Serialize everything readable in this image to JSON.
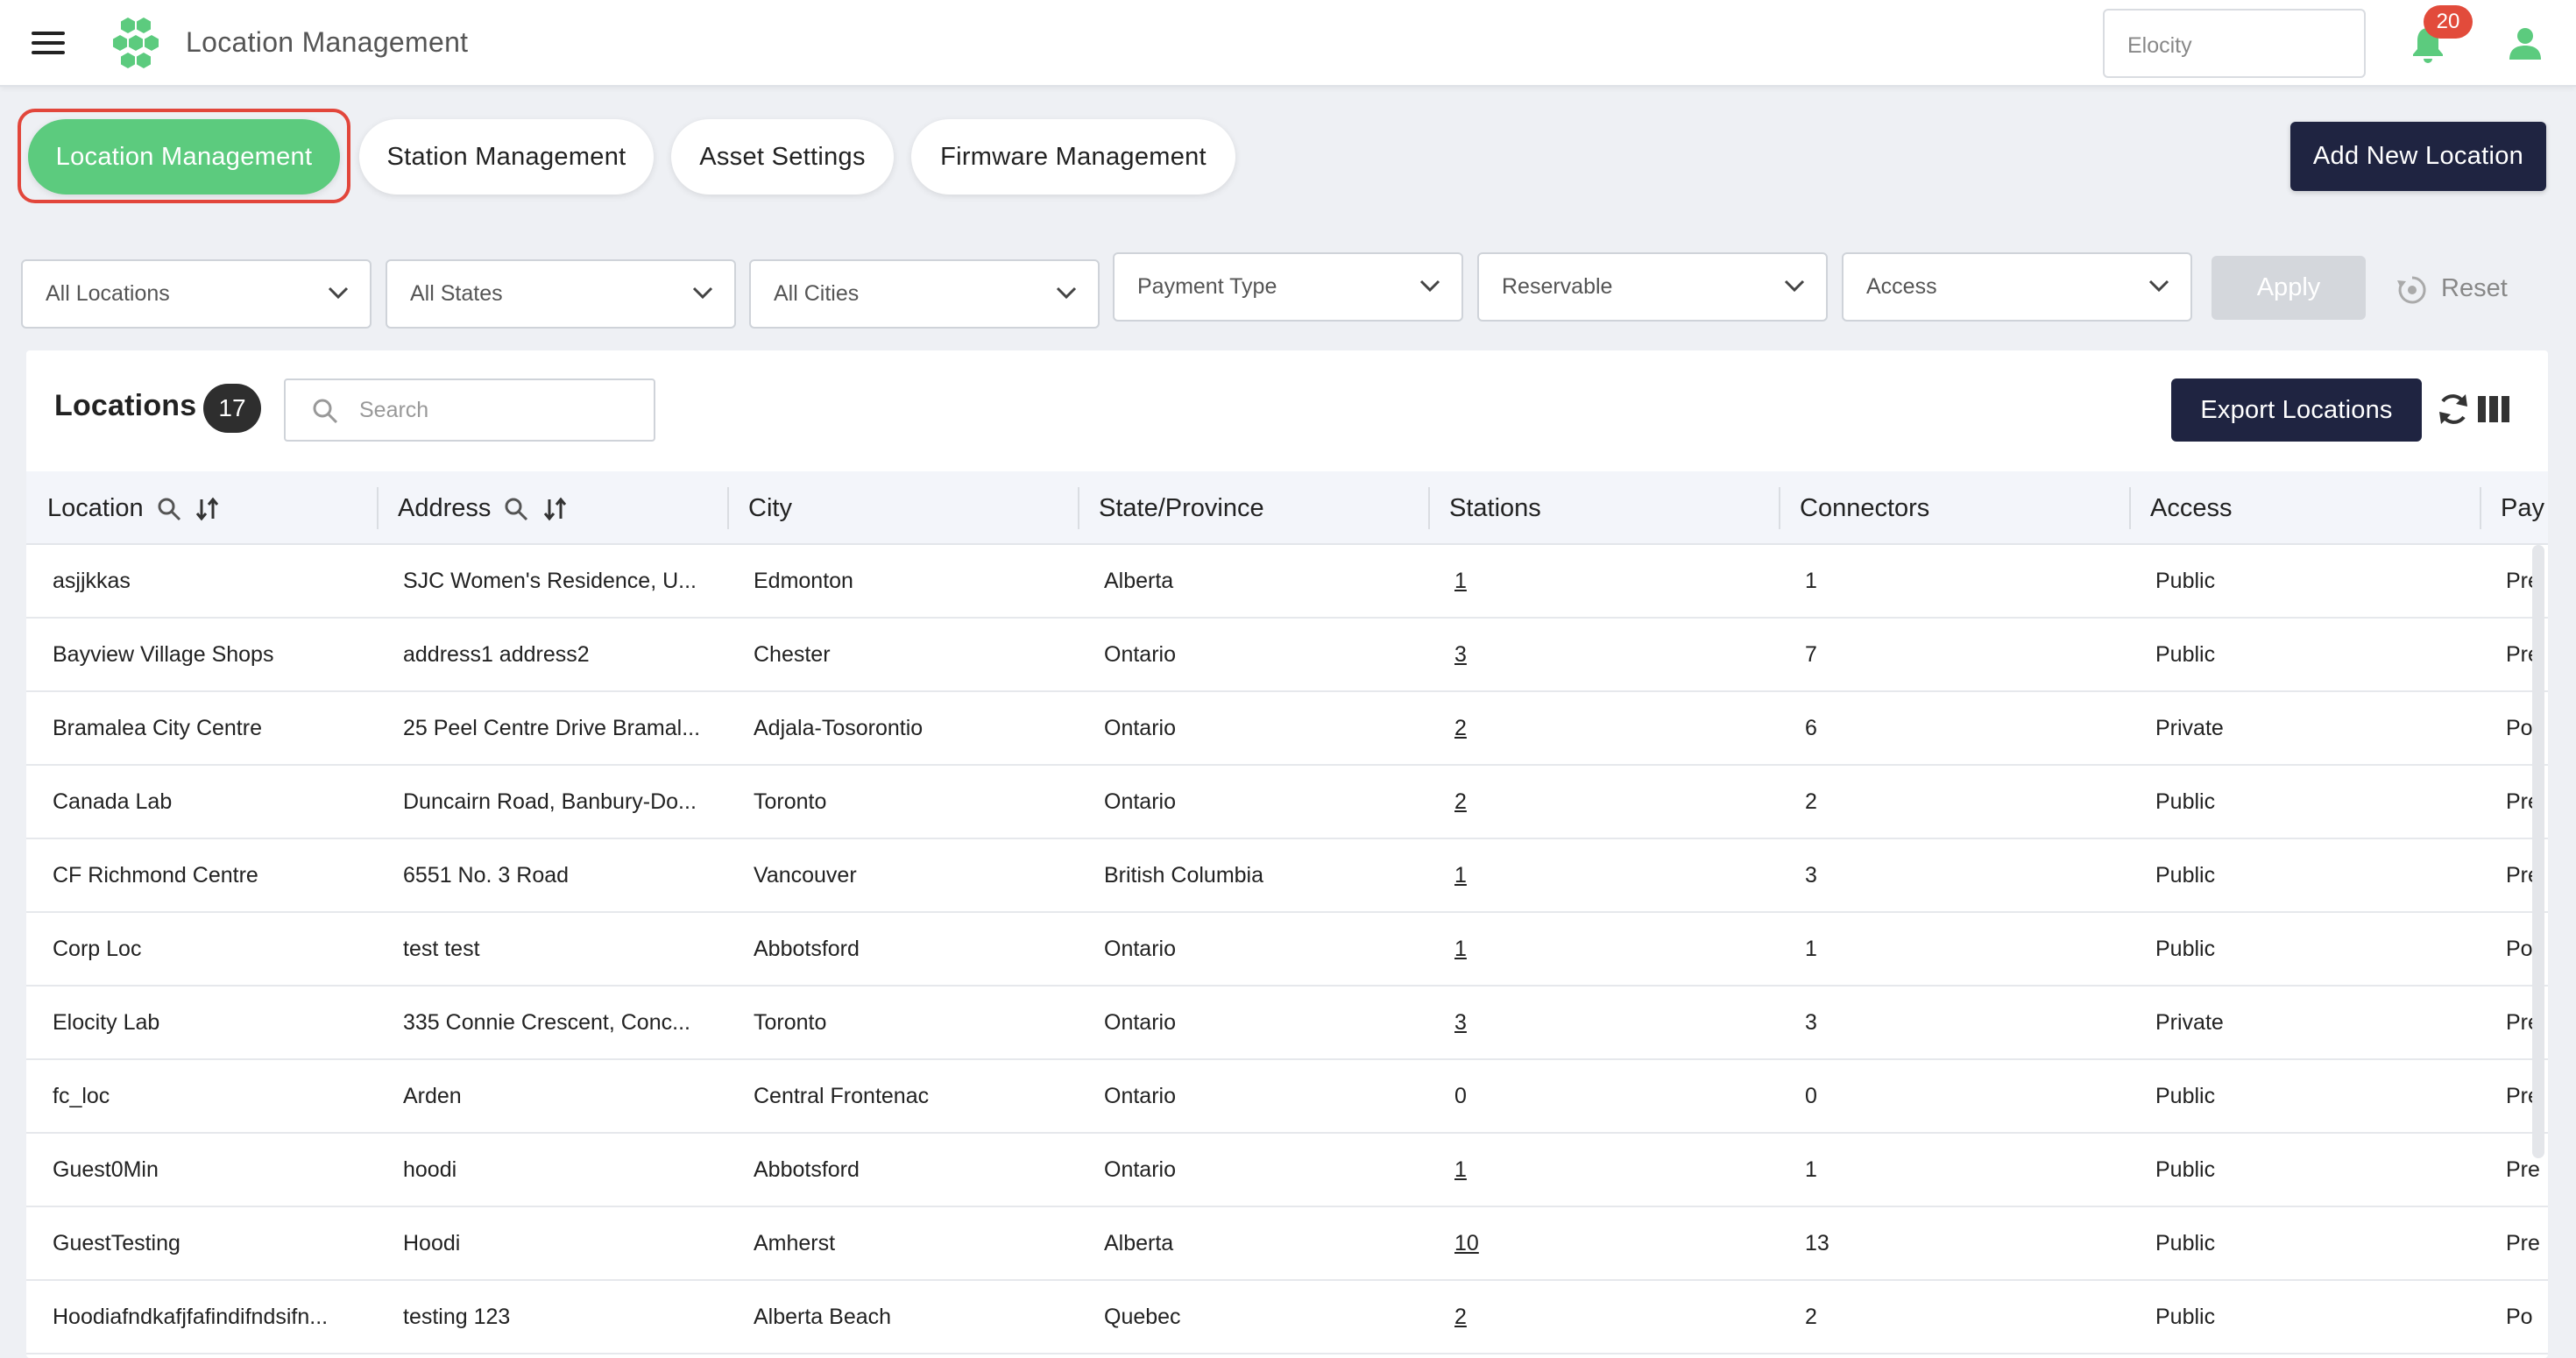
{
  "header": {
    "app_title": "Location Management",
    "org_select_value": "Elocity",
    "notification_count": "20",
    "icons": [
      "hamburger-menu-icon",
      "hexagon-logo-icon",
      "bell-icon",
      "user-icon"
    ]
  },
  "tabs": [
    {
      "label": "Location Management",
      "active": true
    },
    {
      "label": "Station Management",
      "active": false
    },
    {
      "label": "Asset Settings",
      "active": false
    },
    {
      "label": "Firmware Management",
      "active": false
    }
  ],
  "add_button_label": "Add New Location",
  "filters": {
    "locations": "All Locations",
    "states": "All States",
    "cities": "All Cities",
    "payment_type": "Payment Type",
    "reservable": "Reservable",
    "access": "Access",
    "apply_label": "Apply",
    "reset_label": "Reset"
  },
  "table_card": {
    "title": "Locations",
    "count": "17",
    "search_placeholder": "Search",
    "export_label": "Export Locations"
  },
  "columns": [
    "Location",
    "Address",
    "City",
    "State/Province",
    "Stations",
    "Connectors",
    "Access",
    "Pay"
  ],
  "rows": [
    {
      "location": "asjjkkas",
      "address": "SJC Women's Residence, U...",
      "city": "Edmonton",
      "state": "Alberta",
      "stations": "1",
      "connectors": "1",
      "access": "Public",
      "payment": "Pre"
    },
    {
      "location": "Bayview Village Shops",
      "address": "address1 address2",
      "city": "Chester",
      "state": "Ontario",
      "stations": "3",
      "connectors": "7",
      "access": "Public",
      "payment": "Pre"
    },
    {
      "location": "Bramalea City Centre",
      "address": "25 Peel Centre Drive Bramal...",
      "city": "Adjala-Tosorontio",
      "state": "Ontario",
      "stations": "2",
      "connectors": "6",
      "access": "Private",
      "payment": "Po"
    },
    {
      "location": "Canada Lab",
      "address": "Duncairn Road, Banbury-Do...",
      "city": "Toronto",
      "state": "Ontario",
      "stations": "2",
      "connectors": "2",
      "access": "Public",
      "payment": "Pre"
    },
    {
      "location": "CF Richmond Centre",
      "address": "6551 No. 3 Road",
      "city": "Vancouver",
      "state": "British Columbia",
      "stations": "1",
      "connectors": "3",
      "access": "Public",
      "payment": "Pre"
    },
    {
      "location": "Corp Loc",
      "address": "test test",
      "city": "Abbotsford",
      "state": "Ontario",
      "stations": "1",
      "connectors": "1",
      "access": "Public",
      "payment": "Po"
    },
    {
      "location": "Elocity Lab",
      "address": "335 Connie Crescent, Conc...",
      "city": "Toronto",
      "state": "Ontario",
      "stations": "3",
      "connectors": "3",
      "access": "Private",
      "payment": "Pre"
    },
    {
      "location": "fc_loc",
      "address": "Arden",
      "city": "Central Frontenac",
      "state": "Ontario",
      "stations": "0",
      "connectors": "0",
      "access": "Public",
      "payment": "Pre"
    },
    {
      "location": "Guest0Min",
      "address": "hoodi",
      "city": "Abbotsford",
      "state": "Ontario",
      "stations": "1",
      "connectors": "1",
      "access": "Public",
      "payment": "Pre"
    },
    {
      "location": "GuestTesting",
      "address": "Hoodi",
      "city": "Amherst",
      "state": "Alberta",
      "stations": "10",
      "connectors": "13",
      "access": "Public",
      "payment": "Pre"
    },
    {
      "location": "Hoodiafndkafjfafindifndsifn...",
      "address": "testing 123",
      "city": "Alberta Beach",
      "state": "Quebec",
      "stations": "2",
      "connectors": "2",
      "access": "Public",
      "payment": "Po"
    }
  ],
  "colors": {
    "accent_green": "#5ccb7e",
    "navy": "#1f2441",
    "alert_red": "#e24b3b",
    "highlight_outline": "#e2463b"
  }
}
